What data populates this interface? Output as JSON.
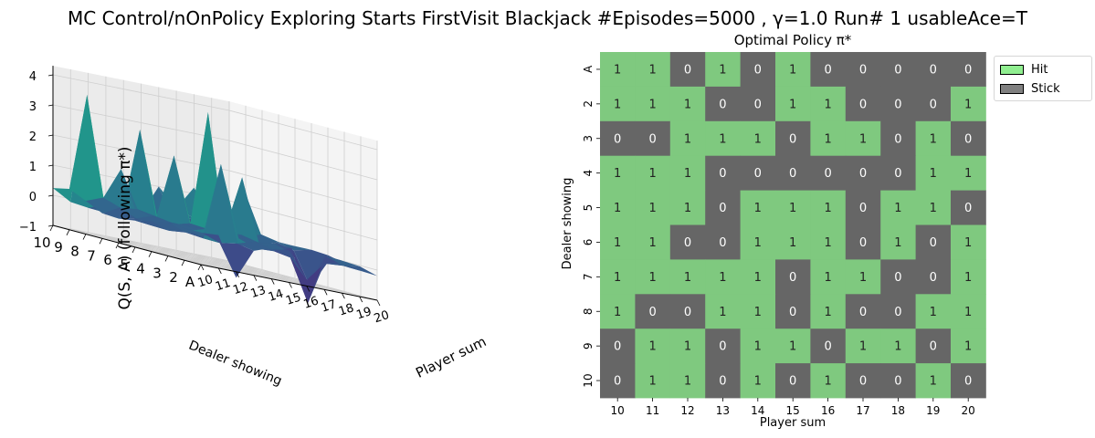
{
  "figure": {
    "title": "MC Control/nOnPolicy Exploring Starts FirstVisit Blackjack #Episodes=5000 , γ=1.0 Run# 1 usableAce=T"
  },
  "colors": {
    "hit": "#7fc97f",
    "stick": "#666666",
    "legend_hit": "#90ee90",
    "legend_stick": "#808080",
    "colormap": "viridis"
  },
  "chart_data": [
    {
      "type": "surface",
      "title": "",
      "xlabel": "Player sum",
      "ylabel": "Dealer showing",
      "zlabel": "Q(S, A) (following π*)",
      "x_ticks": [
        "10",
        "11",
        "12",
        "13",
        "14",
        "15",
        "16",
        "17",
        "18",
        "19",
        "20"
      ],
      "y_ticks": [
        "10",
        "9",
        "8",
        "7",
        "6",
        "5",
        "4",
        "3",
        "2",
        "A"
      ],
      "z_ticks": [
        "4",
        "3",
        "2",
        "1",
        "0",
        "−1"
      ],
      "zlim": [
        -1,
        4
      ],
      "grid": true
    },
    {
      "type": "heatmap",
      "title": "Optimal Policy π*",
      "xlabel": "Player sum",
      "ylabel": "Dealer showing",
      "x_categories": [
        "10",
        "11",
        "12",
        "13",
        "14",
        "15",
        "16",
        "17",
        "18",
        "19",
        "20"
      ],
      "y_categories": [
        "A",
        "2",
        "3",
        "4",
        "5",
        "6",
        "7",
        "8",
        "9",
        "10"
      ],
      "values": [
        [
          1,
          1,
          0,
          1,
          0,
          1,
          0,
          0,
          0,
          0,
          0
        ],
        [
          1,
          1,
          1,
          0,
          0,
          1,
          1,
          0,
          0,
          0,
          1
        ],
        [
          0,
          0,
          1,
          1,
          1,
          0,
          1,
          1,
          0,
          1,
          0
        ],
        [
          1,
          1,
          1,
          0,
          0,
          0,
          0,
          0,
          0,
          1,
          1
        ],
        [
          1,
          1,
          1,
          0,
          1,
          1,
          1,
          0,
          1,
          1,
          0
        ],
        [
          1,
          1,
          0,
          0,
          1,
          1,
          1,
          0,
          1,
          0,
          1
        ],
        [
          1,
          1,
          1,
          1,
          1,
          0,
          1,
          1,
          0,
          0,
          1
        ],
        [
          1,
          0,
          0,
          1,
          1,
          0,
          1,
          0,
          0,
          1,
          1
        ],
        [
          0,
          1,
          1,
          0,
          1,
          1,
          0,
          1,
          1,
          0,
          1
        ],
        [
          0,
          1,
          1,
          0,
          1,
          0,
          1,
          0,
          0,
          1,
          0
        ]
      ],
      "legend": {
        "placement": "upper-right-outside",
        "entries": [
          {
            "label": "Hit",
            "value": 1
          },
          {
            "label": "Stick",
            "value": 0
          }
        ]
      }
    }
  ]
}
